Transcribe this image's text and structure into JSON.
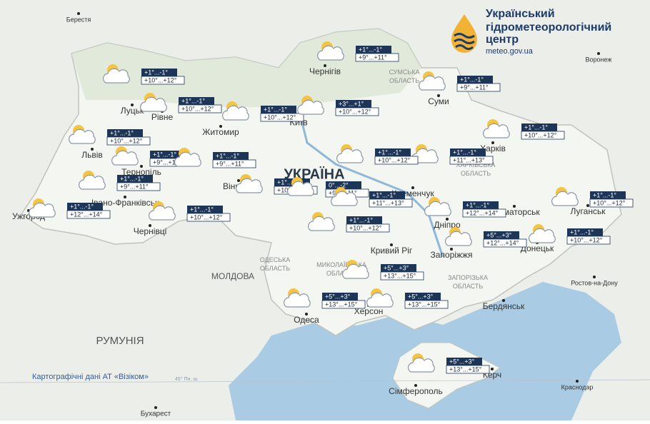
{
  "header": {
    "title_lines": [
      "Український",
      "гідрометеорологічний",
      "центр"
    ],
    "url": "meteo.gov.ua"
  },
  "credit": "Картографічні дані АТ «Візіком»",
  "latitude_note": "45° Пн. ш.",
  "countries": [
    "УКРАЇНА",
    "РУМУНІЯ",
    "МОЛДОВА"
  ],
  "regions": [
    "СУМСЬКА ОБЛАСТЬ",
    "ХАРКІВСЬКА ОБЛАСТЬ",
    "ОДЕСЬКА ОБЛАСТЬ",
    "МИКОЛАЇВСЬКА ОБЛАСТЬ",
    "ЗАПОРІЗЬКА ОБЛАСТЬ"
  ],
  "places": [
    "Берестя",
    "Воронеж",
    "Луцьк",
    "Рівне",
    "Житомир",
    "Київ",
    "Чернігів",
    "Суми",
    "Харків",
    "Львів",
    "Тернопіль",
    "Вінниця",
    "Івано-Франківськ",
    "Ужгород",
    "Чернівці",
    "Кременчук",
    "Дніпро",
    "Краматорськ",
    "Луганськ",
    "Запоріжжя",
    "Донецьк",
    "Кривий Ріг",
    "Одеса",
    "Херсон",
    "Бердянськ",
    "Ростов-на-Дону",
    "Сімферополь",
    "Керч",
    "Краснодар",
    "Бухарест"
  ],
  "forecasts": [
    {
      "night": "+1°...-1°",
      "day": "+10°...+12°"
    },
    {
      "night": "+1°...-1°",
      "day": "+10°...+12°"
    },
    {
      "night": "+1°...-1°",
      "day": "+10°...+12°"
    },
    {
      "night": "+3°...+1°",
      "day": "+10°...+12°"
    },
    {
      "night": "+1°...-1°",
      "day": "+9°...+11°"
    },
    {
      "night": "+1°...-1°",
      "day": "+9°...+11°"
    },
    {
      "night": "+1°...-1°",
      "day": "+10°...+12°"
    },
    {
      "night": "+1°...-1°",
      "day": "+11°...+13°"
    },
    {
      "night": "+1°...-1°",
      "day": "+10°...+12°"
    },
    {
      "night": "+1°...-1°",
      "day": "+10°...+12°"
    },
    {
      "night": "+1°...-1°",
      "day": "+9°...+11°"
    },
    {
      "night": "+1°...-1°",
      "day": "+9°...+11°"
    },
    {
      "night": "+1°...-1°",
      "day": "+9°...+11°"
    },
    {
      "night": "+1°...-1°",
      "day": "+12°...+14°"
    },
    {
      "night": "+1°...-1°",
      "day": "+10°...+12°"
    },
    {
      "night": "+1°...-1°",
      "day": "+10°...+12°"
    },
    {
      "night": "0°...-2°",
      "day": "+9°...+11°"
    },
    {
      "night": "+1°...-1°",
      "day": "+11°...+13°"
    },
    {
      "night": "+1°...-1°",
      "day": "+12°...+14°"
    },
    {
      "night": "+1°...-1°",
      "day": "+10°...+12°"
    },
    {
      "night": "+1°...-1°",
      "day": "+10°...+12°"
    },
    {
      "night": "+5°...+3°",
      "day": "+12°...+14°"
    },
    {
      "night": "+1°...-1°",
      "day": "+10°...+12°"
    },
    {
      "night": "+5°...+3°",
      "day": "+13°...+15°"
    },
    {
      "night": "+5°...+3°",
      "day": "+13°...+15°"
    },
    {
      "night": "+5°...+3°",
      "day": "+13°...+15°"
    },
    {
      "night": "+5°...+3°",
      "day": "+13°...+15°"
    }
  ]
}
